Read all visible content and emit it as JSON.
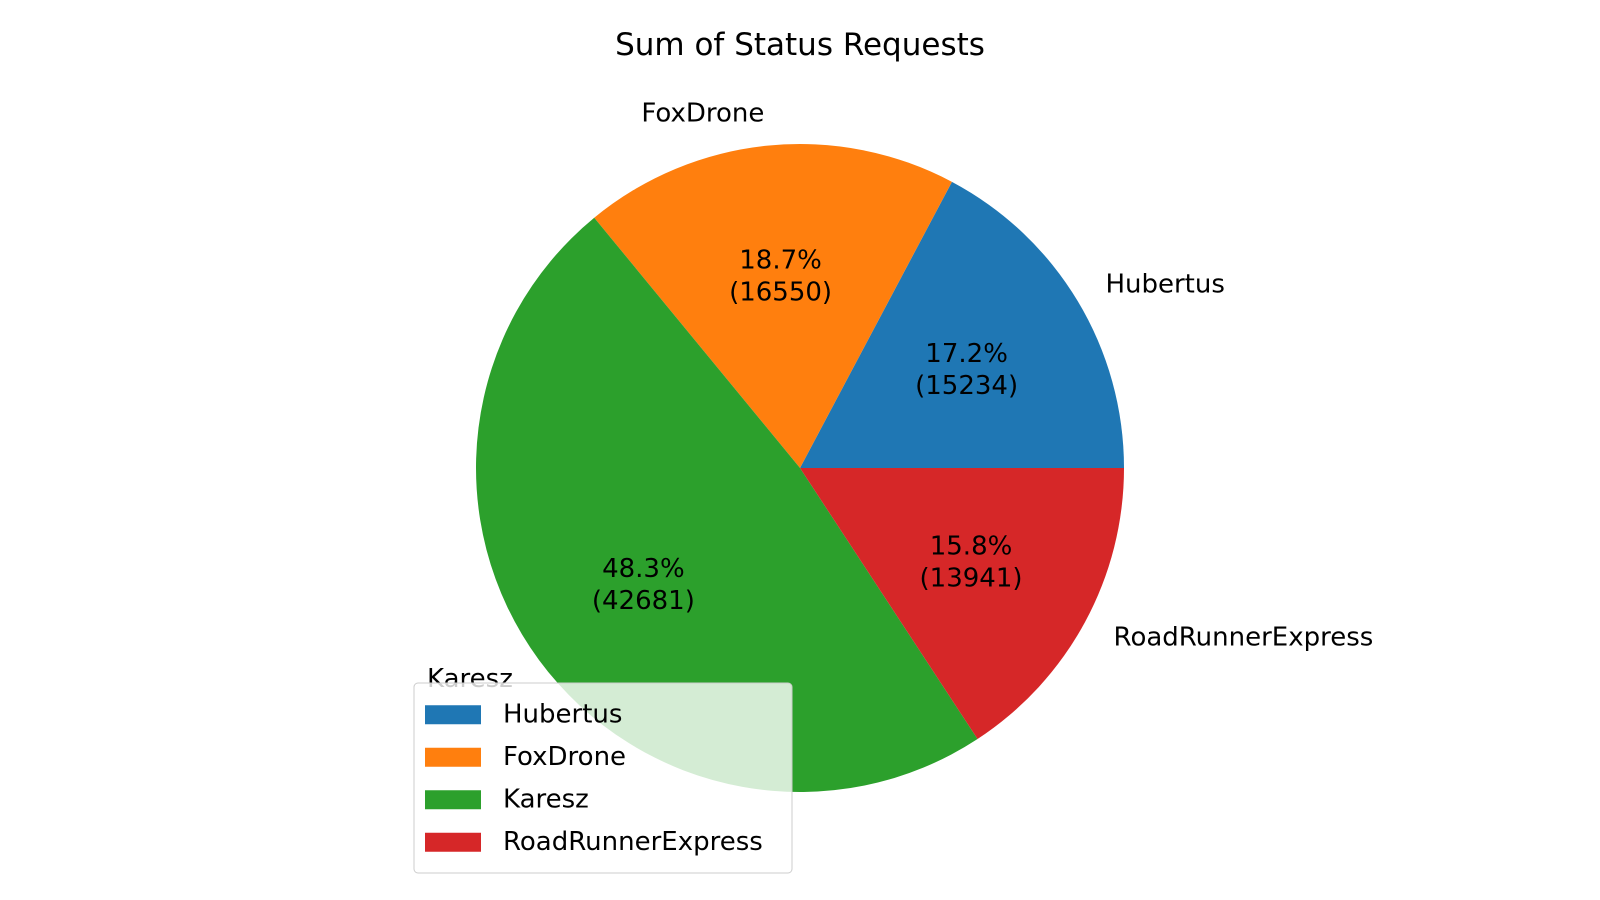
{
  "chart_data": {
    "type": "pie",
    "title": "Sum of Status Requests",
    "slices": [
      {
        "label": "Hubertus",
        "value": 15234,
        "percent": "17.2%",
        "value_text": "(15234)",
        "color": "#1f77b4"
      },
      {
        "label": "FoxDrone",
        "value": 16550,
        "percent": "18.7%",
        "value_text": "(16550)",
        "color": "#ff7f0e"
      },
      {
        "label": "Karesz",
        "value": 42681,
        "percent": "48.3%",
        "value_text": "(42681)",
        "color": "#2ca02c"
      },
      {
        "label": "RoadRunnerExpress",
        "value": 13941,
        "percent": "15.8%",
        "value_text": "(13941)",
        "color": "#d62728"
      }
    ],
    "legend": {
      "placement": "lower-left",
      "entries": [
        "Hubertus",
        "FoxDrone",
        "Karesz",
        "RoadRunnerExpress"
      ]
    }
  }
}
